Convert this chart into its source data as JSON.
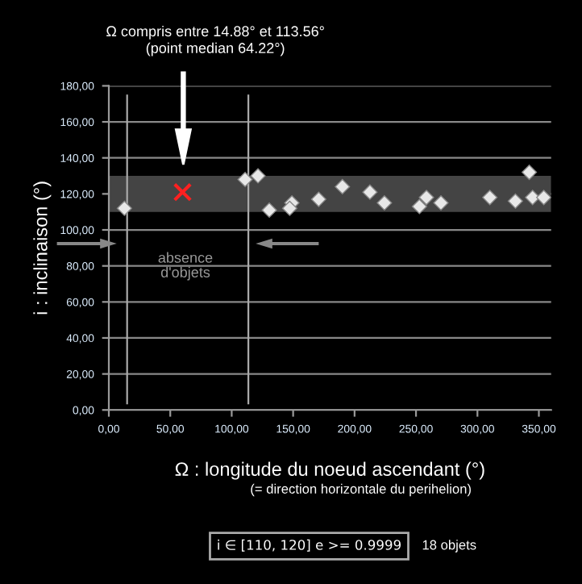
{
  "chart_data": {
    "type": "scatter",
    "title": "Ω compris entre 14.88° et 113.56°\n(point median 64.22°)",
    "xlabel": "Ω : longitude du noeud ascendant (°)",
    "ylabel": "i : inclinaison (°)",
    "annotations": [
      "(= direction horizontale du perihelion)",
      "i ∈ [110, 120] e >= 0.9999",
      "18 objets",
      "absence\nd'objets"
    ],
    "series": [
      {
        "marker": "diamond",
        "color": "#e8e8e8",
        "x": [
          12.7,
          110.9,
          121.4,
          130.6,
          149,
          147.2,
          170.8,
          190.1,
          212.5,
          224.3,
          252.8,
          258.5,
          270.3,
          310.1,
          330.9,
          342.2,
          344.9,
          354
        ],
        "values": [
          112,
          128,
          130,
          111,
          115,
          112,
          117,
          124,
          121,
          115,
          113,
          118,
          115,
          118,
          116,
          132,
          118,
          118
        ]
      },
      {
        "marker": "cross",
        "color": "#ff2020",
        "x": [
          60
        ],
        "values": [
          121
        ]
      }
    ],
    "bands": [
      {
        "axis": "y",
        "from": 110,
        "to": 130,
        "color": "#444444"
      }
    ],
    "ref_lines": [
      {
        "axis": "x",
        "value": 14.88,
        "color": "#aaaaaa"
      },
      {
        "axis": "x",
        "value": 113.56,
        "color": "#aaaaaa"
      }
    ],
    "xlim": [
      0,
      360
    ],
    "ylim": [
      0,
      180
    ],
    "xticks": [
      {
        "value": 0,
        "label": "0,00"
      },
      {
        "value": 50,
        "label": "50,00"
      },
      {
        "value": 100,
        "label": "100,00"
      },
      {
        "value": 150,
        "label": "150,00"
      },
      {
        "value": 200,
        "label": "200,00"
      },
      {
        "value": 250,
        "label": "250,00"
      },
      {
        "value": 300,
        "label": "300,00"
      },
      {
        "value": 350,
        "label": "350,00"
      }
    ],
    "yticks": [
      {
        "value": 0,
        "label": "0,00"
      },
      {
        "value": 20,
        "label": "20,00"
      },
      {
        "value": 40,
        "label": "40,00"
      },
      {
        "value": 60,
        "label": "60,00"
      },
      {
        "value": 80,
        "label": "80,00"
      },
      {
        "value": 100,
        "label": "100,00"
      },
      {
        "value": 120,
        "label": "120,00"
      },
      {
        "value": 140,
        "label": "140,00"
      },
      {
        "value": 160,
        "label": "160,00"
      },
      {
        "value": 180,
        "label": "180,00"
      }
    ],
    "grid": "y"
  }
}
